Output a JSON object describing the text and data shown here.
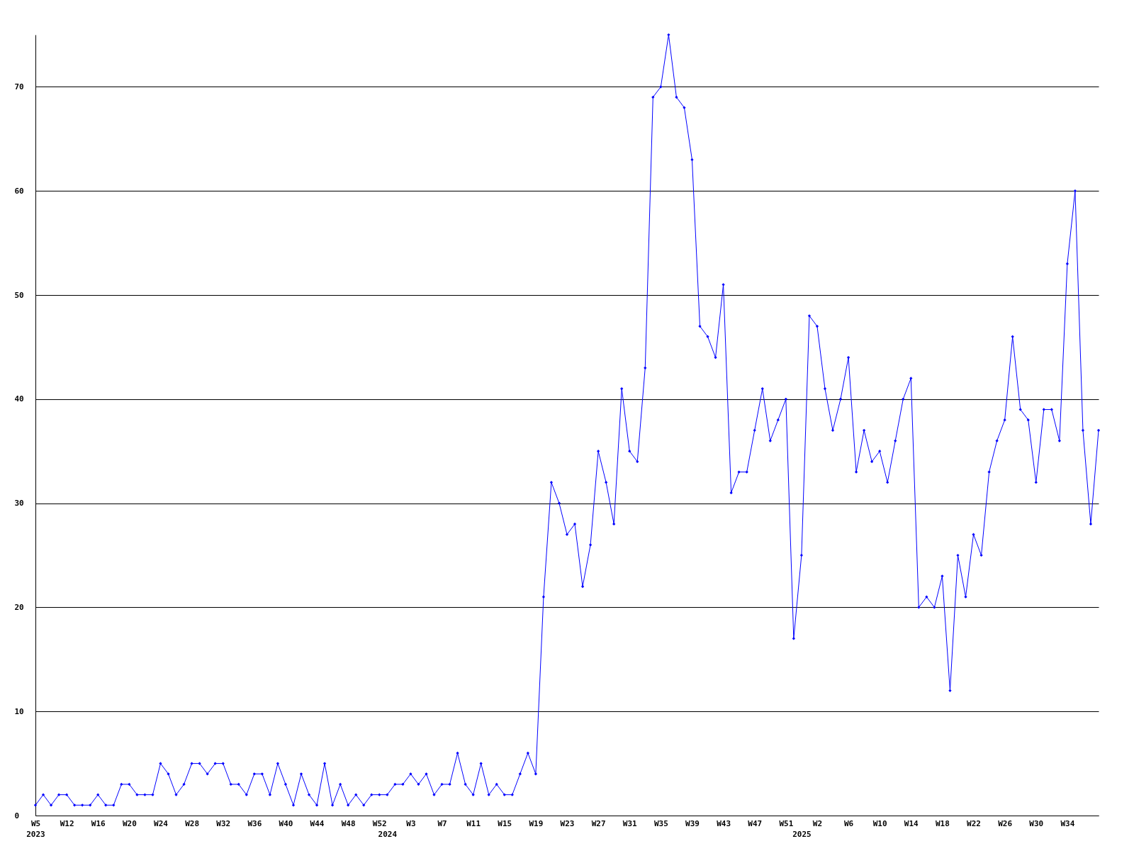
{
  "chart_data": {
    "type": "line",
    "categories": [
      "W5\n2023",
      null,
      null,
      null,
      "W12",
      null,
      null,
      null,
      "W16",
      null,
      null,
      null,
      "W20",
      null,
      null,
      null,
      "W24",
      null,
      null,
      null,
      "W28",
      null,
      null,
      null,
      "W32",
      null,
      null,
      null,
      "W36",
      null,
      null,
      null,
      "W40",
      null,
      null,
      null,
      "W44",
      null,
      null,
      null,
      "W48",
      null,
      null,
      null,
      "W52",
      "\n2024",
      null,
      null,
      "W3",
      null,
      null,
      null,
      "W7",
      null,
      null,
      null,
      "W11",
      null,
      null,
      null,
      "W15",
      null,
      null,
      null,
      "W19",
      null,
      null,
      null,
      "W23",
      null,
      null,
      null,
      "W27",
      null,
      null,
      null,
      "W31",
      null,
      null,
      null,
      "W35",
      null,
      null,
      null,
      "W39",
      null,
      null,
      null,
      "W43",
      null,
      null,
      null,
      "W47",
      null,
      null,
      null,
      "W51",
      null,
      "\n2025",
      null,
      "W2",
      null,
      null,
      null,
      "W6",
      null,
      null,
      null,
      "W10",
      null,
      null,
      null,
      "W14",
      null,
      null,
      null,
      "W18",
      null,
      null,
      null,
      "W22",
      null,
      null,
      null,
      "W26",
      null,
      null,
      null,
      "W30",
      null,
      null,
      null,
      "W34",
      null,
      null,
      null,
      null
    ],
    "values": [
      1,
      2,
      1,
      2,
      2,
      1,
      1,
      1,
      2,
      1,
      1,
      3,
      3,
      2,
      2,
      2,
      5,
      4,
      2,
      3,
      5,
      5,
      4,
      5,
      5,
      3,
      3,
      2,
      4,
      4,
      2,
      5,
      3,
      1,
      4,
      2,
      1,
      5,
      1,
      3,
      1,
      2,
      1,
      2,
      2,
      2,
      3,
      3,
      4,
      3,
      4,
      2,
      3,
      3,
      6,
      3,
      2,
      5,
      2,
      3,
      2,
      2,
      4,
      6,
      4,
      21,
      32,
      30,
      27,
      28,
      22,
      26,
      35,
      32,
      28,
      41,
      35,
      34,
      43,
      69,
      70,
      75,
      69,
      68,
      63,
      47,
      46,
      44,
      51,
      31,
      33,
      33,
      37,
      41,
      36,
      38,
      40,
      17,
      25,
      48,
      47,
      41,
      37,
      40,
      44,
      33,
      37,
      34,
      35,
      32,
      36,
      40,
      42,
      20,
      21,
      20,
      23,
      12,
      25,
      21,
      27,
      25,
      33,
      36,
      38,
      46,
      39,
      38,
      32,
      39,
      39,
      36,
      53,
      60,
      37,
      28,
      37
    ],
    "color": "#0000ff",
    "marker": "diamond",
    "grid": "y",
    "ylim": [
      0,
      75
    ],
    "yticks": [
      0,
      10,
      20,
      30,
      40,
      50,
      60,
      70
    ]
  }
}
